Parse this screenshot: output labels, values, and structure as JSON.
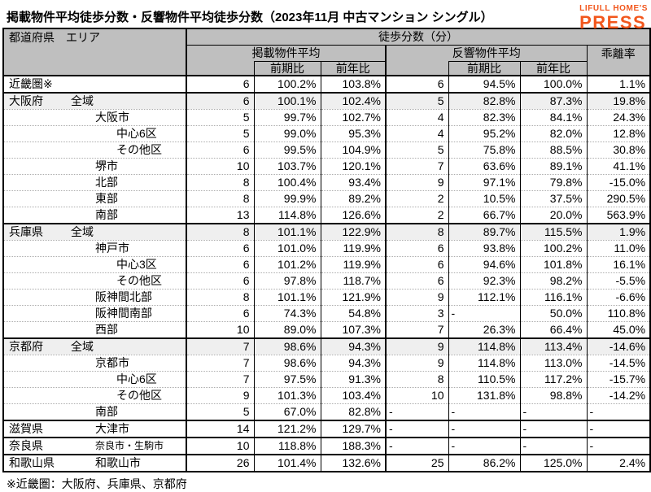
{
  "title": "掲載物件平均徒歩分数・反響物件平均徒歩分数（2023年11月 中古マンション シングル）",
  "logo": {
    "line1": "LIFULL HOME'S",
    "line2": "PRESS",
    "color": "#F2571D"
  },
  "note": "※近畿圏：大阪府、兵庫県、京都府",
  "table": {
    "headers": {
      "pref_area": "都道府県　エリア",
      "walk_minutes": "徒歩分数（分）",
      "listed_avg": "掲載物件平均",
      "resp_avg": "反響物件平均",
      "gap_rate": "乖離率",
      "qoq": "前期比",
      "yoy": "前年比"
    },
    "columns": [
      "listed-avg",
      "listed-qoq",
      "listed-yoy",
      "resp-avg",
      "resp-qoq",
      "resp-yoy",
      "gap-rate"
    ],
    "rows": [
      {
        "pref": "近畿圏※",
        "area": "",
        "ind": 0,
        "thick": true,
        "v": [
          "6",
          "100.2%",
          "103.8%",
          "6",
          "94.5%",
          "100.0%",
          "1.1%"
        ]
      },
      {
        "pref": "大阪府",
        "area": "全域",
        "ind": 0,
        "thick": true,
        "shaded": true,
        "v": [
          "6",
          "100.1%",
          "102.4%",
          "5",
          "82.8%",
          "87.3%",
          "19.8%"
        ]
      },
      {
        "pref": "",
        "area": "大阪市",
        "ind": 1,
        "v": [
          "5",
          "99.7%",
          "102.7%",
          "4",
          "82.3%",
          "84.1%",
          "24.3%"
        ]
      },
      {
        "pref": "",
        "area": "中心6区",
        "ind": 2,
        "v": [
          "5",
          "99.0%",
          "95.3%",
          "4",
          "95.2%",
          "82.0%",
          "12.8%"
        ]
      },
      {
        "pref": "",
        "area": "その他区",
        "ind": 2,
        "v": [
          "6",
          "99.5%",
          "104.9%",
          "5",
          "75.8%",
          "88.5%",
          "30.8%"
        ]
      },
      {
        "pref": "",
        "area": "堺市",
        "ind": 1,
        "v": [
          "10",
          "103.7%",
          "120.1%",
          "7",
          "63.6%",
          "89.1%",
          "41.1%"
        ]
      },
      {
        "pref": "",
        "area": "北部",
        "ind": 1,
        "v": [
          "8",
          "100.4%",
          "93.4%",
          "9",
          "97.1%",
          "79.8%",
          "-15.0%"
        ]
      },
      {
        "pref": "",
        "area": "東部",
        "ind": 1,
        "v": [
          "8",
          "99.9%",
          "89.2%",
          "2",
          "10.5%",
          "37.5%",
          "290.5%"
        ]
      },
      {
        "pref": "",
        "area": "南部",
        "ind": 1,
        "v": [
          "13",
          "114.8%",
          "126.6%",
          "2",
          "66.7%",
          "20.0%",
          "563.9%"
        ]
      },
      {
        "pref": "兵庫県",
        "area": "全域",
        "ind": 0,
        "thick": true,
        "shaded": true,
        "v": [
          "8",
          "101.1%",
          "122.9%",
          "8",
          "89.7%",
          "115.5%",
          "1.9%"
        ]
      },
      {
        "pref": "",
        "area": "神戸市",
        "ind": 1,
        "v": [
          "6",
          "101.0%",
          "119.9%",
          "6",
          "93.8%",
          "100.2%",
          "11.0%"
        ]
      },
      {
        "pref": "",
        "area": "中心3区",
        "ind": 2,
        "v": [
          "6",
          "101.2%",
          "119.9%",
          "6",
          "94.6%",
          "101.8%",
          "16.1%"
        ]
      },
      {
        "pref": "",
        "area": "その他区",
        "ind": 2,
        "v": [
          "6",
          "97.8%",
          "118.7%",
          "6",
          "92.3%",
          "98.2%",
          "-5.5%"
        ]
      },
      {
        "pref": "",
        "area": "阪神間北部",
        "ind": 1,
        "v": [
          "8",
          "101.1%",
          "121.9%",
          "9",
          "112.1%",
          "116.1%",
          "-6.6%"
        ]
      },
      {
        "pref": "",
        "area": "阪神間南部",
        "ind": 1,
        "v": [
          "6",
          "74.3%",
          "54.8%",
          "3",
          "-",
          "50.0%",
          "110.8%"
        ]
      },
      {
        "pref": "",
        "area": "西部",
        "ind": 1,
        "v": [
          "10",
          "89.0%",
          "107.3%",
          "7",
          "26.3%",
          "66.4%",
          "45.0%"
        ]
      },
      {
        "pref": "京都府",
        "area": "全域",
        "ind": 0,
        "thick": true,
        "shaded": true,
        "v": [
          "7",
          "98.6%",
          "94.3%",
          "9",
          "114.8%",
          "113.4%",
          "-14.6%"
        ]
      },
      {
        "pref": "",
        "area": "京都市",
        "ind": 1,
        "v": [
          "7",
          "98.6%",
          "94.3%",
          "9",
          "114.8%",
          "113.0%",
          "-14.5%"
        ]
      },
      {
        "pref": "",
        "area": "中心6区",
        "ind": 2,
        "v": [
          "7",
          "97.5%",
          "91.3%",
          "8",
          "110.5%",
          "117.2%",
          "-15.7%"
        ]
      },
      {
        "pref": "",
        "area": "その他区",
        "ind": 2,
        "v": [
          "9",
          "101.3%",
          "103.4%",
          "10",
          "131.8%",
          "98.8%",
          "-14.2%"
        ]
      },
      {
        "pref": "",
        "area": "南部",
        "ind": 1,
        "v": [
          "5",
          "67.0%",
          "82.8%",
          "-",
          "-",
          "-",
          "-"
        ]
      },
      {
        "pref": "滋賀県",
        "area": "大津市",
        "ind": 1,
        "thick": true,
        "v": [
          "14",
          "121.2%",
          "129.7%",
          "-",
          "-",
          "-",
          "-"
        ]
      },
      {
        "pref": "奈良県",
        "area": "奈良市・生駒市",
        "ind": 1,
        "small": true,
        "thick": true,
        "v": [
          "10",
          "118.8%",
          "188.3%",
          "-",
          "-",
          "-",
          "-"
        ]
      },
      {
        "pref": "和歌山県",
        "area": "和歌山市",
        "ind": 1,
        "thick": true,
        "v": [
          "26",
          "101.4%",
          "132.6%",
          "25",
          "86.2%",
          "125.0%",
          "2.4%"
        ]
      }
    ]
  }
}
